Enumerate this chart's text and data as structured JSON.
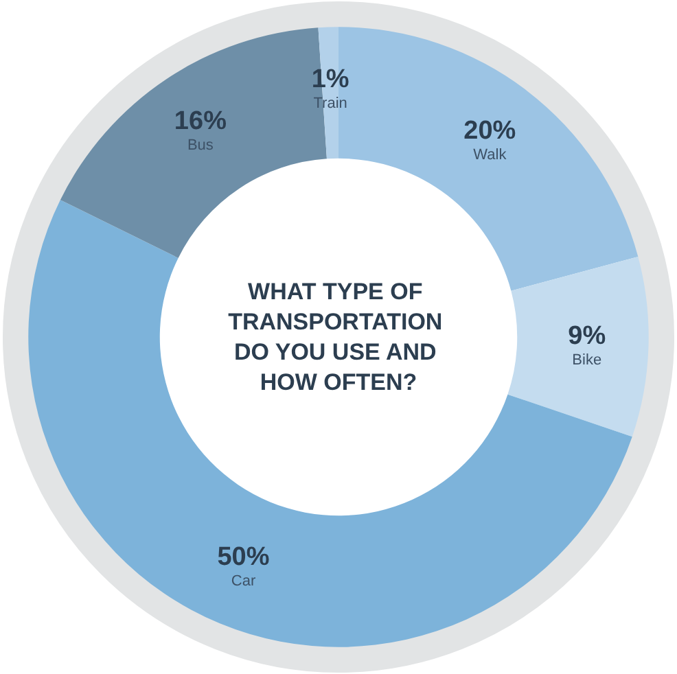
{
  "chart_data": {
    "type": "donut",
    "title": "WHAT TYPE OF TRANSPORTATION DO YOU USE AND HOW OFTEN?",
    "categories": [
      "Walk",
      "Bike",
      "Car",
      "Bus",
      "Train"
    ],
    "values": [
      20,
      9,
      50,
      16,
      1
    ],
    "value_labels": [
      "20%",
      "9%",
      "50%",
      "16%",
      "1%"
    ],
    "colors": [
      "#9cc4e4",
      "#c4dcef",
      "#7db3da",
      "#6e8fa8",
      "#b3d1ea"
    ],
    "legend": false
  }
}
